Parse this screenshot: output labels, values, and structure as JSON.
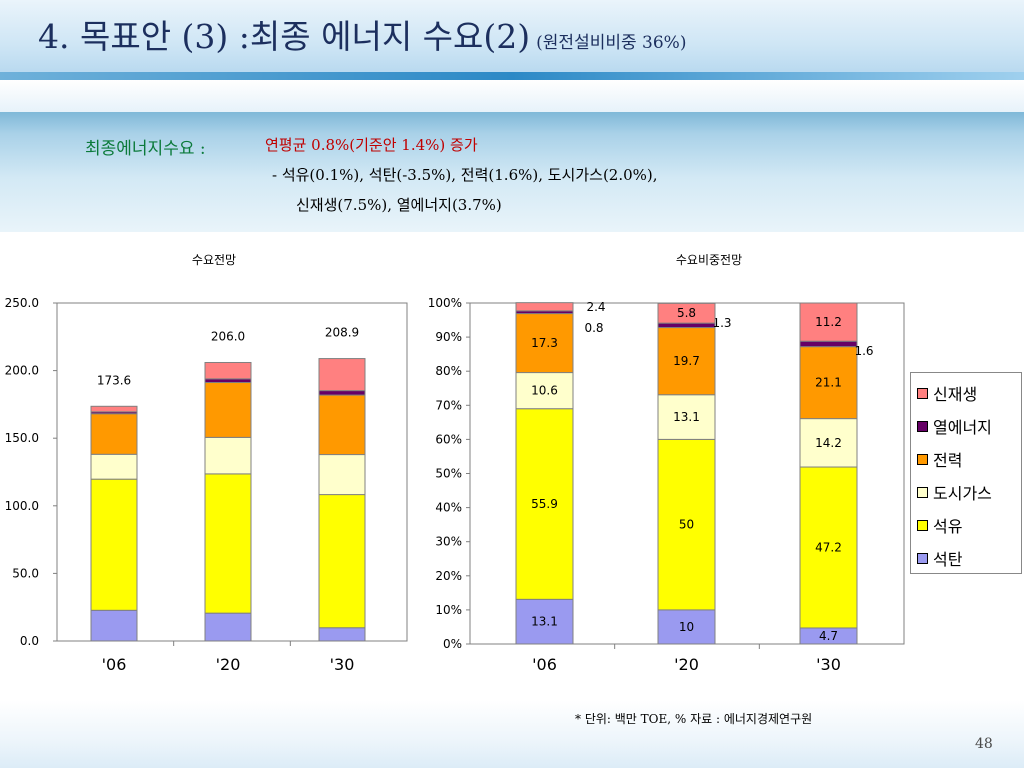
{
  "header": {
    "title": "4. 목표안 (3) :최종 에너지 수요(2)",
    "subtitle": "(원전설비비중 36%)"
  },
  "summary": {
    "label": "최종에너지수요 :",
    "text": "연평균 0.8%(기준안 1.4%) 증가",
    "line1": "- 석유(0.1%), 석탄(-3.5%), 전력(1.6%), 도시가스(2.0%),",
    "line2": "신재생(7.5%), 열에너지(3.7%)"
  },
  "colors": {
    "석탄": "#9a9af0",
    "석유": "#ffff00",
    "도시가스": "#ffffcc",
    "전력": "#ff9900",
    "열에너지": "#660066",
    "신재생": "#ff8080"
  },
  "chart_data": [
    {
      "type": "bar",
      "stacked": true,
      "title": "수요전망",
      "categories": [
        "'06",
        "'20",
        "'30"
      ],
      "ylim": [
        0,
        250
      ],
      "yticks": [
        "0.0",
        "50.0",
        "100.0",
        "150.0",
        "200.0",
        "250.0"
      ],
      "series": [
        {
          "name": "석탄",
          "values": [
            22.7,
            20.6,
            9.8
          ]
        },
        {
          "name": "석유",
          "values": [
            97.0,
            103.0,
            98.5
          ]
        },
        {
          "name": "도시가스",
          "values": [
            18.4,
            27.0,
            29.6
          ]
        },
        {
          "name": "전력",
          "values": [
            30.0,
            40.6,
            44.0
          ]
        },
        {
          "name": "열에너지",
          "values": [
            1.4,
            2.7,
            3.3
          ]
        },
        {
          "name": "신재생",
          "values": [
            4.1,
            12.1,
            23.7
          ]
        }
      ],
      "totals": [
        "173.6",
        "206.0",
        "208.9"
      ],
      "grid": false
    },
    {
      "type": "bar",
      "stacked": true,
      "percent": true,
      "title": "수요비중전망",
      "categories": [
        "'06",
        "'20",
        "'30"
      ],
      "ylim": [
        0,
        100
      ],
      "yticks": [
        "0%",
        "10%",
        "20%",
        "30%",
        "40%",
        "50%",
        "60%",
        "70%",
        "80%",
        "90%",
        "100%"
      ],
      "series": [
        {
          "name": "석탄",
          "values": [
            13.1,
            10.0,
            4.7
          ]
        },
        {
          "name": "석유",
          "values": [
            55.9,
            50.0,
            47.2
          ]
        },
        {
          "name": "도시가스",
          "values": [
            10.6,
            13.1,
            14.2
          ]
        },
        {
          "name": "전력",
          "values": [
            17.3,
            19.7,
            21.1
          ]
        },
        {
          "name": "열에너지",
          "values": [
            0.8,
            1.3,
            1.6
          ]
        },
        {
          "name": "신재생",
          "values": [
            2.4,
            5.8,
            11.2
          ]
        }
      ],
      "legend": {
        "position": "right",
        "items": [
          "신재생",
          "열에너지",
          "전력",
          "도시가스",
          "석유",
          "석탄"
        ]
      },
      "grid": false
    }
  ],
  "footer": {
    "note": "* 단위: 백만 TOE, % 자료 : 에너지경제연구원",
    "page": "48"
  }
}
